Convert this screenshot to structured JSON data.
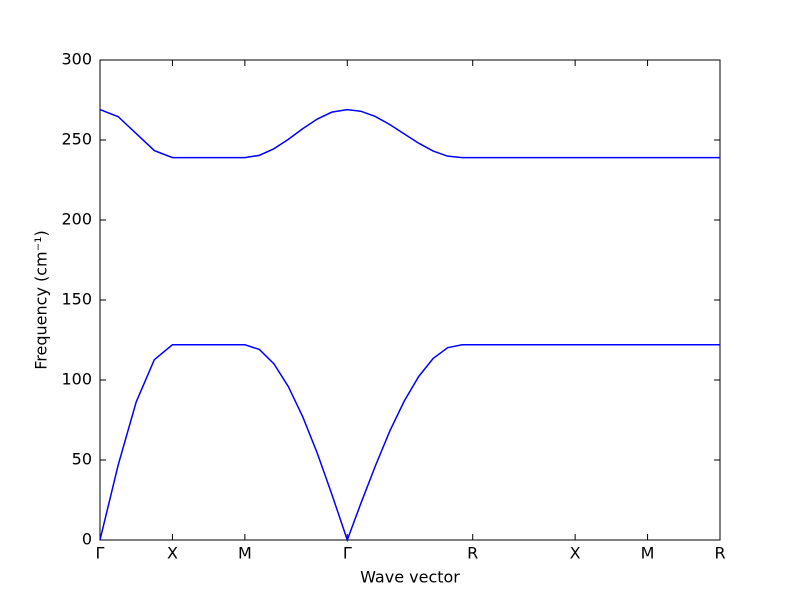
{
  "chart_data": {
    "type": "line",
    "xlabel": "Wave vector",
    "ylabel": "Frequency (cm⁻¹)",
    "x": [
      0,
      0.125,
      0.25,
      0.375,
      0.5,
      0.75,
      1.0,
      1.1,
      1.2,
      1.3,
      1.4,
      1.5,
      1.6,
      1.707,
      1.8,
      1.9,
      2.0,
      2.1,
      2.2,
      2.3,
      2.4,
      2.5,
      2.573,
      3.28,
      3.78,
      4.28
    ],
    "series": [
      {
        "color": "#0000ff",
        "values": [
          0,
          46.7,
          86.3,
          112.7,
          122,
          122,
          122,
          119.1,
          110.2,
          95.9,
          76.9,
          54.2,
          28.7,
          0,
          22.7,
          46.1,
          68.0,
          86.8,
          102.2,
          113.5,
          120.2,
          122,
          122,
          122,
          122,
          122
        ]
      },
      {
        "color": "#0000ff",
        "values": [
          269,
          264.6,
          254,
          243.4,
          239,
          239,
          239,
          240.4,
          244.5,
          250.4,
          257.1,
          263.1,
          267.4,
          269,
          268.0,
          264.7,
          259.7,
          253.8,
          248.0,
          243.1,
          239.9,
          239,
          239,
          239,
          239,
          239
        ]
      }
    ],
    "xlim": [
      0,
      4.28
    ],
    "xticks": [
      {
        "value": 0,
        "label": "Γ"
      },
      {
        "value": 0.5,
        "label": "X"
      },
      {
        "value": 1.0,
        "label": "M"
      },
      {
        "value": 1.707,
        "label": "Γ"
      },
      {
        "value": 2.573,
        "label": "R"
      },
      {
        "value": 3.28,
        "label": "X"
      },
      {
        "value": 3.78,
        "label": "M"
      },
      {
        "value": 4.28,
        "label": "R"
      }
    ],
    "ylim": [
      0,
      300
    ],
    "yticks": [
      0,
      50,
      100,
      150,
      200,
      250,
      300
    ],
    "grid": false
  }
}
